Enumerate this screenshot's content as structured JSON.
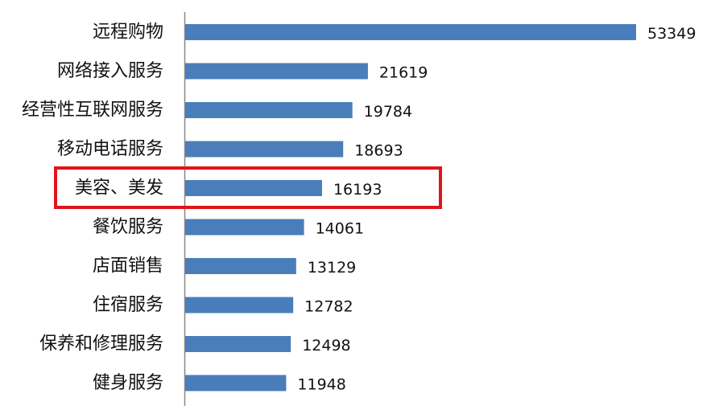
{
  "chart_data": {
    "type": "bar",
    "orientation": "horizontal",
    "categories": [
      "远程购物",
      "网络接入服务",
      "经营性互联网服务",
      "移动电话服务",
      "美容、美发",
      "餐饮服务",
      "店面销售",
      "住宿服务",
      "保养和修理服务",
      "健身服务"
    ],
    "values": [
      53349,
      21619,
      19784,
      18693,
      16193,
      14061,
      13129,
      12782,
      12498,
      11948
    ],
    "title": "",
    "xlabel": "",
    "ylabel": "",
    "xlim": [
      0,
      53349
    ],
    "grid": false,
    "legend": "none",
    "highlighted_category": "美容、美发",
    "colors": {
      "bar": "#4a7ebb",
      "highlight_box": "#e0151b",
      "axis": "#888888"
    }
  }
}
